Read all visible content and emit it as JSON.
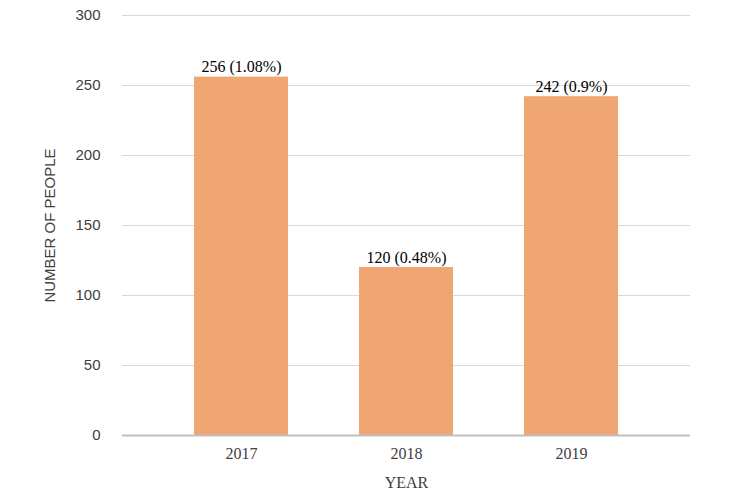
{
  "chart_data": {
    "type": "bar",
    "x_label": "YEAR",
    "y_label": "NUMBER OF PEOPLE",
    "categories": [
      "2017",
      "2018",
      "2019"
    ],
    "values": [
      256,
      120,
      242
    ],
    "value_labels": [
      "256 (1.08%)",
      "120 (0.48%)",
      "242 (0.9%)"
    ],
    "data_labels": true,
    "color": "#f0a672",
    "ylim": [
      0,
      300
    ],
    "yticks": [
      0,
      50,
      100,
      150,
      200,
      250,
      300
    ],
    "grid": true
  }
}
